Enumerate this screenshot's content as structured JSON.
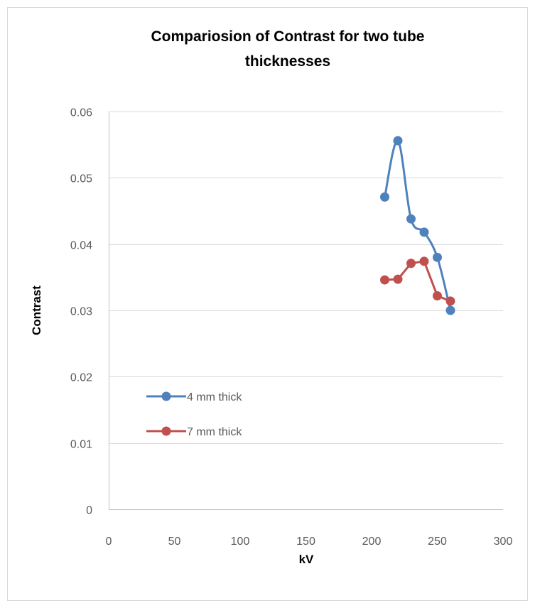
{
  "chart_data": {
    "type": "scatter",
    "title_lines": [
      "Compariosion of Contrast for two tube",
      "thicknesses"
    ],
    "xlabel": "kV",
    "ylabel": "Contrast",
    "xlim": [
      0,
      300
    ],
    "ylim": [
      0,
      0.06
    ],
    "xticks": [
      "0",
      "50",
      "100",
      "150",
      "200",
      "250",
      "300"
    ],
    "yticks": [
      "0",
      "0.01",
      "0.02",
      "0.03",
      "0.04",
      "0.05",
      "0.06"
    ],
    "grid": "horizontal",
    "legend_position": "left",
    "smooth_lines": true,
    "series": [
      {
        "name": "4 mm thick",
        "color": "#4f81bd",
        "x": [
          210,
          220,
          230,
          240,
          250,
          260
        ],
        "y": [
          0.0471,
          0.0556,
          0.0438,
          0.0418,
          0.038,
          0.03
        ]
      },
      {
        "name": "7 mm thick",
        "color": "#c0504d",
        "x": [
          210,
          220,
          230,
          240,
          250,
          260
        ],
        "y": [
          0.0346,
          0.0347,
          0.0371,
          0.0374,
          0.0322,
          0.0314
        ]
      }
    ]
  }
}
